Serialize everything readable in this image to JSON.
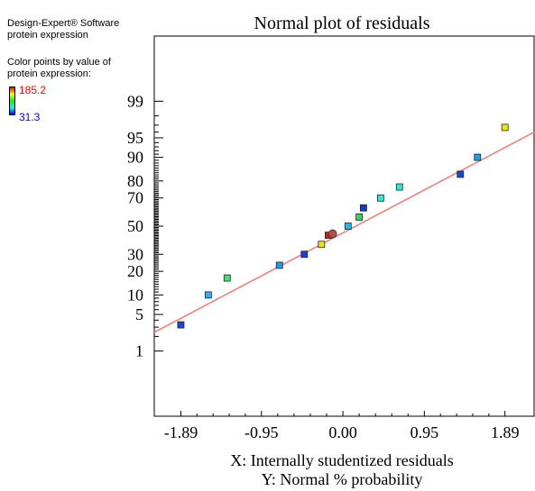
{
  "sidebar": {
    "software": "Design-Expert® Software",
    "response": "protein expression",
    "color_caption_line1": "Color points by value of",
    "color_caption_line2": "protein expression:",
    "color_max": "185.2",
    "color_min": "31.3",
    "color_max_hex": "#ff0000",
    "color_min_hex": "#0000ff"
  },
  "chart_data": {
    "type": "scatter",
    "title": "Normal plot of residuals",
    "xlabel": "X: Internally studentized residuals",
    "ylabel": "Y: Normal % probability",
    "x_ticks": [
      {
        "value": -1.89,
        "label": "-1.89"
      },
      {
        "value": -0.95,
        "label": "-0.95"
      },
      {
        "value": 0.0,
        "label": "0.00"
      },
      {
        "value": 0.95,
        "label": "0.95"
      },
      {
        "value": 1.89,
        "label": "1.89"
      }
    ],
    "y_ticks": [
      {
        "value": 1,
        "label": "1"
      },
      {
        "value": 5,
        "label": "5"
      },
      {
        "value": 10,
        "label": "10"
      },
      {
        "value": 20,
        "label": "20"
      },
      {
        "value": 30,
        "label": "30"
      },
      {
        "value": 50,
        "label": "50"
      },
      {
        "value": 70,
        "label": "70"
      },
      {
        "value": 80,
        "label": "80"
      },
      {
        "value": 90,
        "label": "90"
      },
      {
        "value": 95,
        "label": "95"
      },
      {
        "value": 99,
        "label": "99"
      }
    ],
    "xlim": [
      -2.2,
      2.23
    ],
    "ylim_percent": [
      0.02,
      99.98
    ],
    "y_scale": "normal-probability",
    "grid": false,
    "reference_line": {
      "color": "#f08080",
      "points": [
        {
          "x": -2.2,
          "y": 2.4
        },
        {
          "x": 2.23,
          "y": 96.0
        }
      ]
    },
    "points": [
      {
        "x": -1.89,
        "y": 3.3,
        "color": "#1a46d6",
        "shape": "square"
      },
      {
        "x": -1.57,
        "y": 10.0,
        "color": "#2cb2ef",
        "shape": "square"
      },
      {
        "x": -1.35,
        "y": 16.7,
        "color": "#44e46a",
        "shape": "square"
      },
      {
        "x": -0.74,
        "y": 23.3,
        "color": "#2a9ae0",
        "shape": "square"
      },
      {
        "x": -0.45,
        "y": 30.0,
        "color": "#1a3ed6",
        "shape": "square"
      },
      {
        "x": -0.25,
        "y": 36.7,
        "color": "#e4e41c",
        "shape": "square"
      },
      {
        "x": -0.17,
        "y": 43.3,
        "color": "#e01414",
        "shape": "square"
      },
      {
        "x": -0.12,
        "y": 44.3,
        "color": "#b0504a",
        "shape": "circle"
      },
      {
        "x": 0.06,
        "y": 50.0,
        "color": "#26b8e8",
        "shape": "square"
      },
      {
        "x": 0.19,
        "y": 56.7,
        "color": "#2ed860",
        "shape": "square"
      },
      {
        "x": 0.24,
        "y": 63.3,
        "color": "#1438d0",
        "shape": "square"
      },
      {
        "x": 0.44,
        "y": 70.0,
        "color": "#2ee8d4",
        "shape": "square"
      },
      {
        "x": 0.66,
        "y": 76.7,
        "color": "#30e8d6",
        "shape": "square"
      },
      {
        "x": 1.37,
        "y": 83.3,
        "color": "#1848d8",
        "shape": "square"
      },
      {
        "x": 1.57,
        "y": 90.0,
        "color": "#2a9ce2",
        "shape": "square"
      },
      {
        "x": 1.89,
        "y": 96.7,
        "color": "#e8e81a",
        "shape": "square"
      }
    ]
  }
}
